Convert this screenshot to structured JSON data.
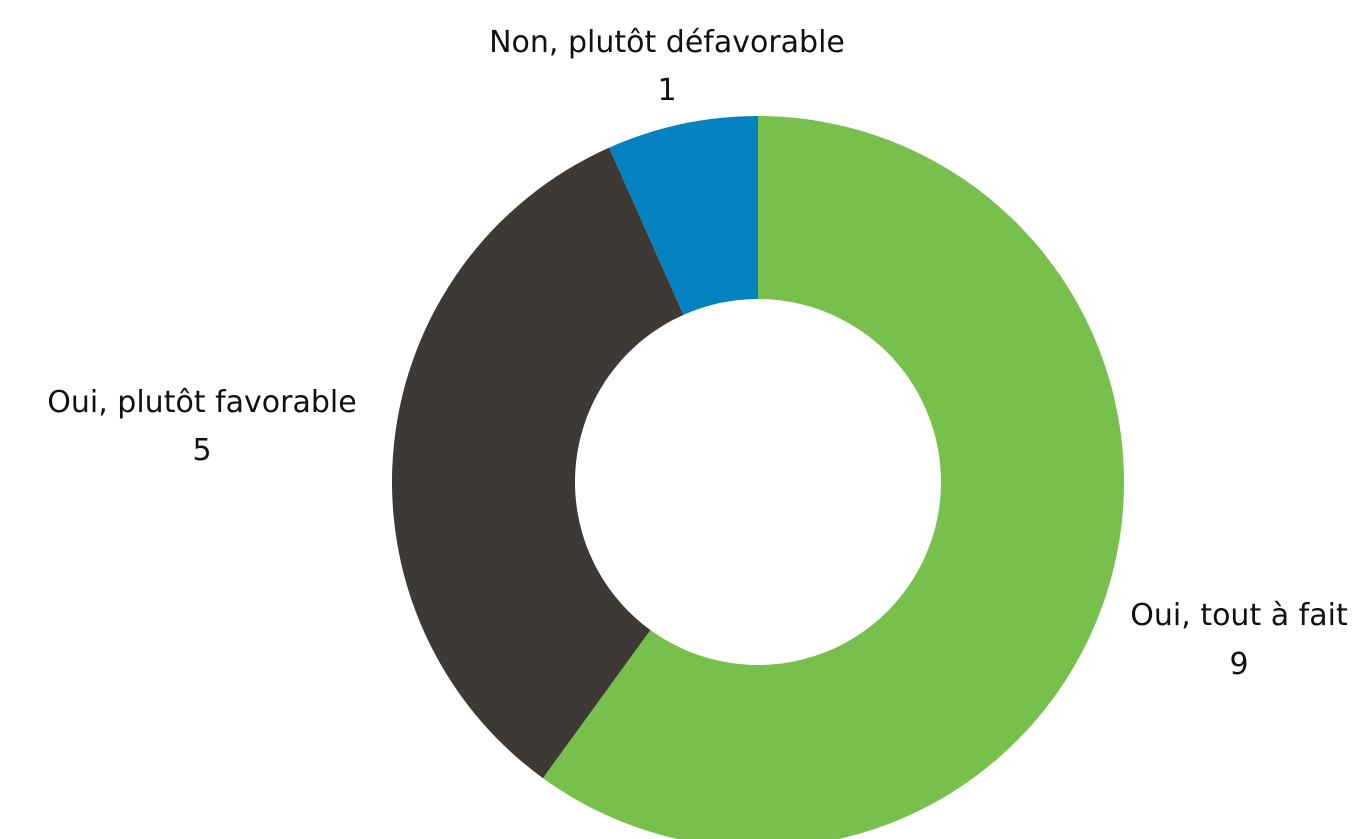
{
  "chart_data": {
    "type": "pie",
    "variant": "donut",
    "title": "",
    "legend": "none",
    "slices": [
      {
        "label": "Oui, tout à fait",
        "value": 9,
        "value_label": "9",
        "color": "#76C04B"
      },
      {
        "label": "Oui, plutôt favorable",
        "value": 5,
        "value_label": "5",
        "color": "#3D3A36"
      },
      {
        "label": "Non, plutôt défavorable",
        "value": 1,
        "value_label": "1",
        "color": "#0282BF"
      }
    ]
  }
}
